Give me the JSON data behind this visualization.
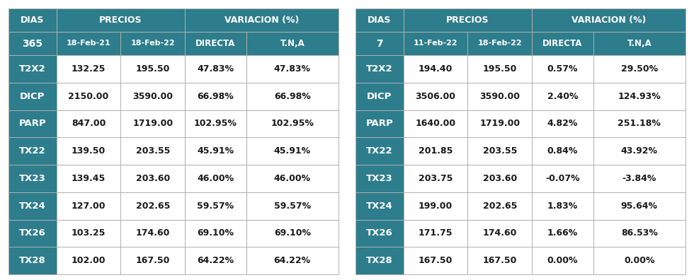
{
  "table1": {
    "dias": "365",
    "sub_headers": [
      "",
      "18-Feb-21",
      "18-Feb-22",
      "DIRECTA",
      "T.N,A"
    ],
    "rows": [
      [
        "T2X2",
        "132.25",
        "195.50",
        "47.83%",
        "47.83%"
      ],
      [
        "DICP",
        "2150.00",
        "3590.00",
        "66.98%",
        "66.98%"
      ],
      [
        "PARP",
        "847.00",
        "1719.00",
        "102.95%",
        "102.95%"
      ],
      [
        "TX22",
        "139.50",
        "203.55",
        "45.91%",
        "45.91%"
      ],
      [
        "TX23",
        "139.45",
        "203.60",
        "46.00%",
        "46.00%"
      ],
      [
        "TX24",
        "127.00",
        "202.65",
        "59.57%",
        "59.57%"
      ],
      [
        "TX26",
        "103.25",
        "174.60",
        "69.10%",
        "69.10%"
      ],
      [
        "TX28",
        "102.00",
        "167.50",
        "64.22%",
        "64.22%"
      ]
    ]
  },
  "table2": {
    "dias": "7",
    "sub_headers": [
      "",
      "11-Feb-22",
      "18-Feb-22",
      "DIRECTA",
      "T.N,A"
    ],
    "rows": [
      [
        "T2X2",
        "194.40",
        "195.50",
        "0.57%",
        "29.50%"
      ],
      [
        "DICP",
        "3506.00",
        "3590.00",
        "2.40%",
        "124.93%"
      ],
      [
        "PARP",
        "1640.00",
        "1719.00",
        "4.82%",
        "251.18%"
      ],
      [
        "TX22",
        "201.85",
        "203.55",
        "0.84%",
        "43.92%"
      ],
      [
        "TX23",
        "203.75",
        "203.60",
        "-0.07%",
        "-3.84%"
      ],
      [
        "TX24",
        "199.00",
        "202.65",
        "1.83%",
        "95.64%"
      ],
      [
        "TX26",
        "171.75",
        "174.60",
        "1.66%",
        "86.53%"
      ],
      [
        "TX28",
        "167.50",
        "167.50",
        "0.00%",
        "0.00%"
      ]
    ]
  },
  "header_bg": "#2E7D8C",
  "header_text": "#FFFFFF",
  "row_name_bg": "#2E7D8C",
  "row_name_text": "#FFFFFF",
  "data_bg": "#FFFFFF",
  "data_text": "#1A1A1A",
  "border_color": "#B0B0B0",
  "background": "#FFFFFF"
}
